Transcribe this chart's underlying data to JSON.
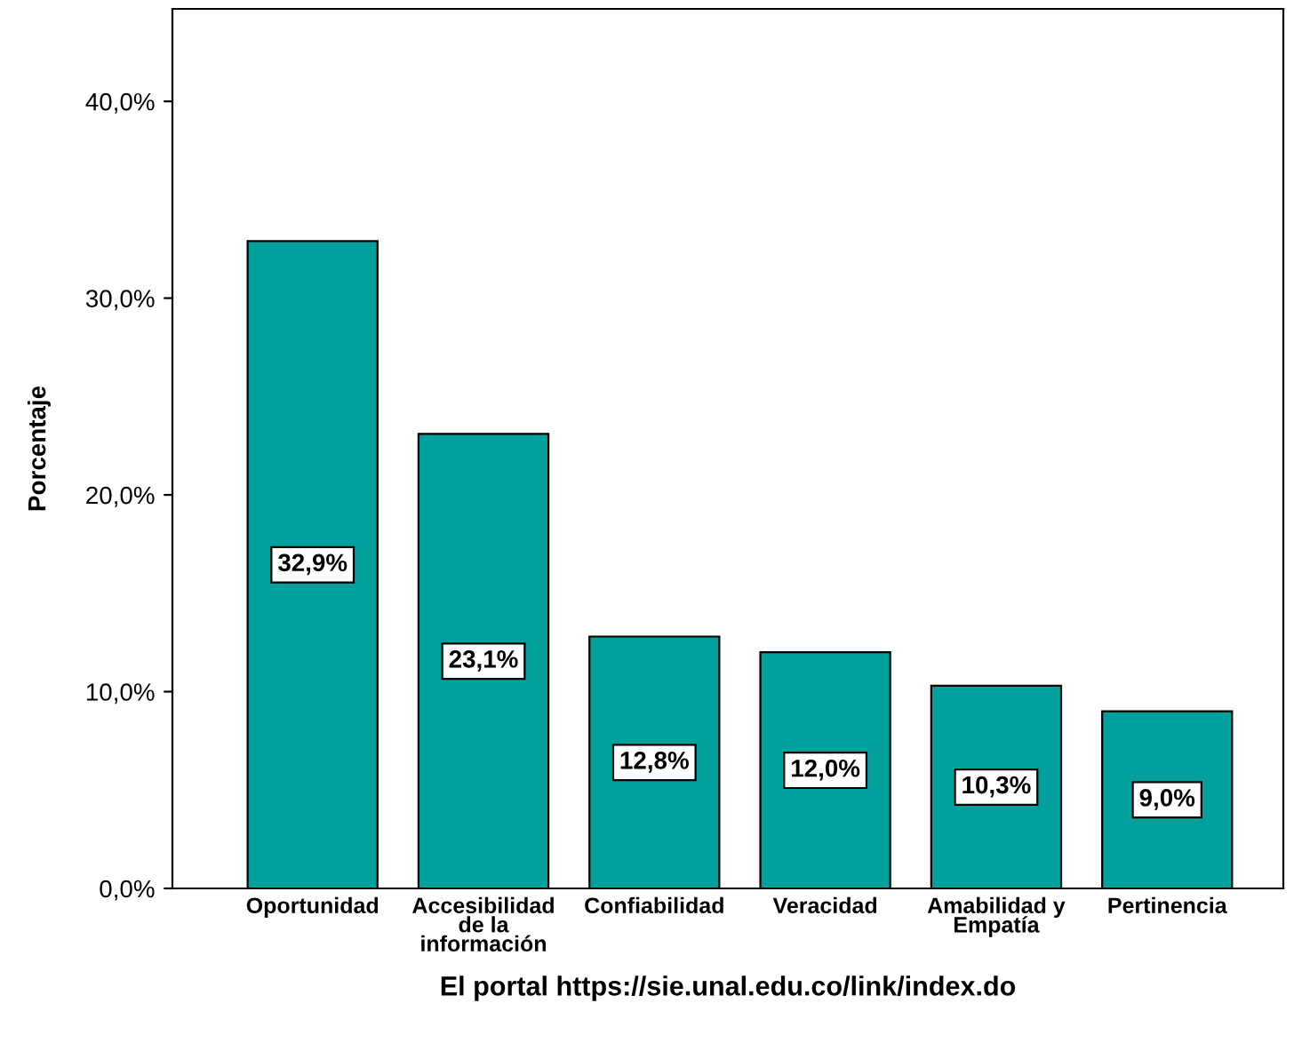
{
  "chart_data": {
    "type": "bar",
    "categories": [
      "Oportunidad",
      "Accesibilidad\nde la\ninformación",
      "Confiabilidad",
      "Veracidad",
      "Amabilidad y\nEmpatía",
      "Pertinencia"
    ],
    "values": [
      32.9,
      23.1,
      12.8,
      12.0,
      10.3,
      9.0
    ],
    "value_labels": [
      "32,9%",
      "23,1%",
      "12,8%",
      "12,0%",
      "10,3%",
      "9,0%"
    ],
    "color": "#00a09c",
    "xlabel": "El portal https://sie.unal.edu.co/link/index.do",
    "ylabel": "Porcentaje",
    "ylim": [
      0,
      44.7
    ],
    "yticks": [
      {
        "value": 0,
        "label": "0,0%"
      },
      {
        "value": 10,
        "label": "10,0%"
      },
      {
        "value": 20,
        "label": "20,0%"
      },
      {
        "value": 30,
        "label": "30,0%"
      },
      {
        "value": 40,
        "label": "40,0%"
      }
    ],
    "grid": false
  }
}
